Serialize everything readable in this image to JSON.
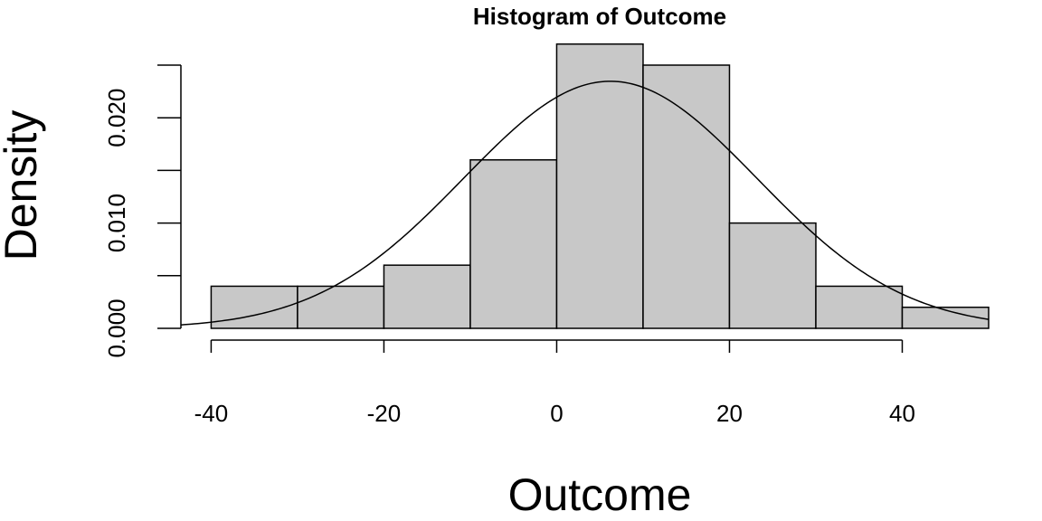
{
  "chart_data": {
    "type": "bar",
    "title": "Histogram of Outcome",
    "xlabel": "Outcome",
    "ylabel": "Density",
    "bins": [
      {
        "x0": -40,
        "x1": -30,
        "density": 0.004
      },
      {
        "x0": -30,
        "x1": -20,
        "density": 0.004
      },
      {
        "x0": -20,
        "x1": -10,
        "density": 0.006
      },
      {
        "x0": -10,
        "x1": 0,
        "density": 0.016
      },
      {
        "x0": 0,
        "x1": 10,
        "density": 0.027
      },
      {
        "x0": 10,
        "x1": 20,
        "density": 0.025
      },
      {
        "x0": 20,
        "x1": 30,
        "density": 0.01
      },
      {
        "x0": 30,
        "x1": 40,
        "density": 0.004
      },
      {
        "x0": 40,
        "x1": 50,
        "density": 0.002
      }
    ],
    "normal_curve": {
      "mean": 6.2,
      "sd": 17.0
    },
    "xlim": [
      -43.5,
      50
    ],
    "ylim": [
      0,
      0.025
    ],
    "x_ticks": [
      -40,
      -20,
      0,
      20,
      40
    ],
    "x_tick_labels": [
      "-40",
      "-20",
      "0",
      "20",
      "40"
    ],
    "y_ticks": [
      0,
      0.005,
      0.01,
      0.015,
      0.02,
      0.025
    ],
    "y_tick_labels": [
      "0.000",
      "",
      "0.010",
      "",
      "0.020",
      ""
    ],
    "grid": false,
    "legend": "none"
  }
}
